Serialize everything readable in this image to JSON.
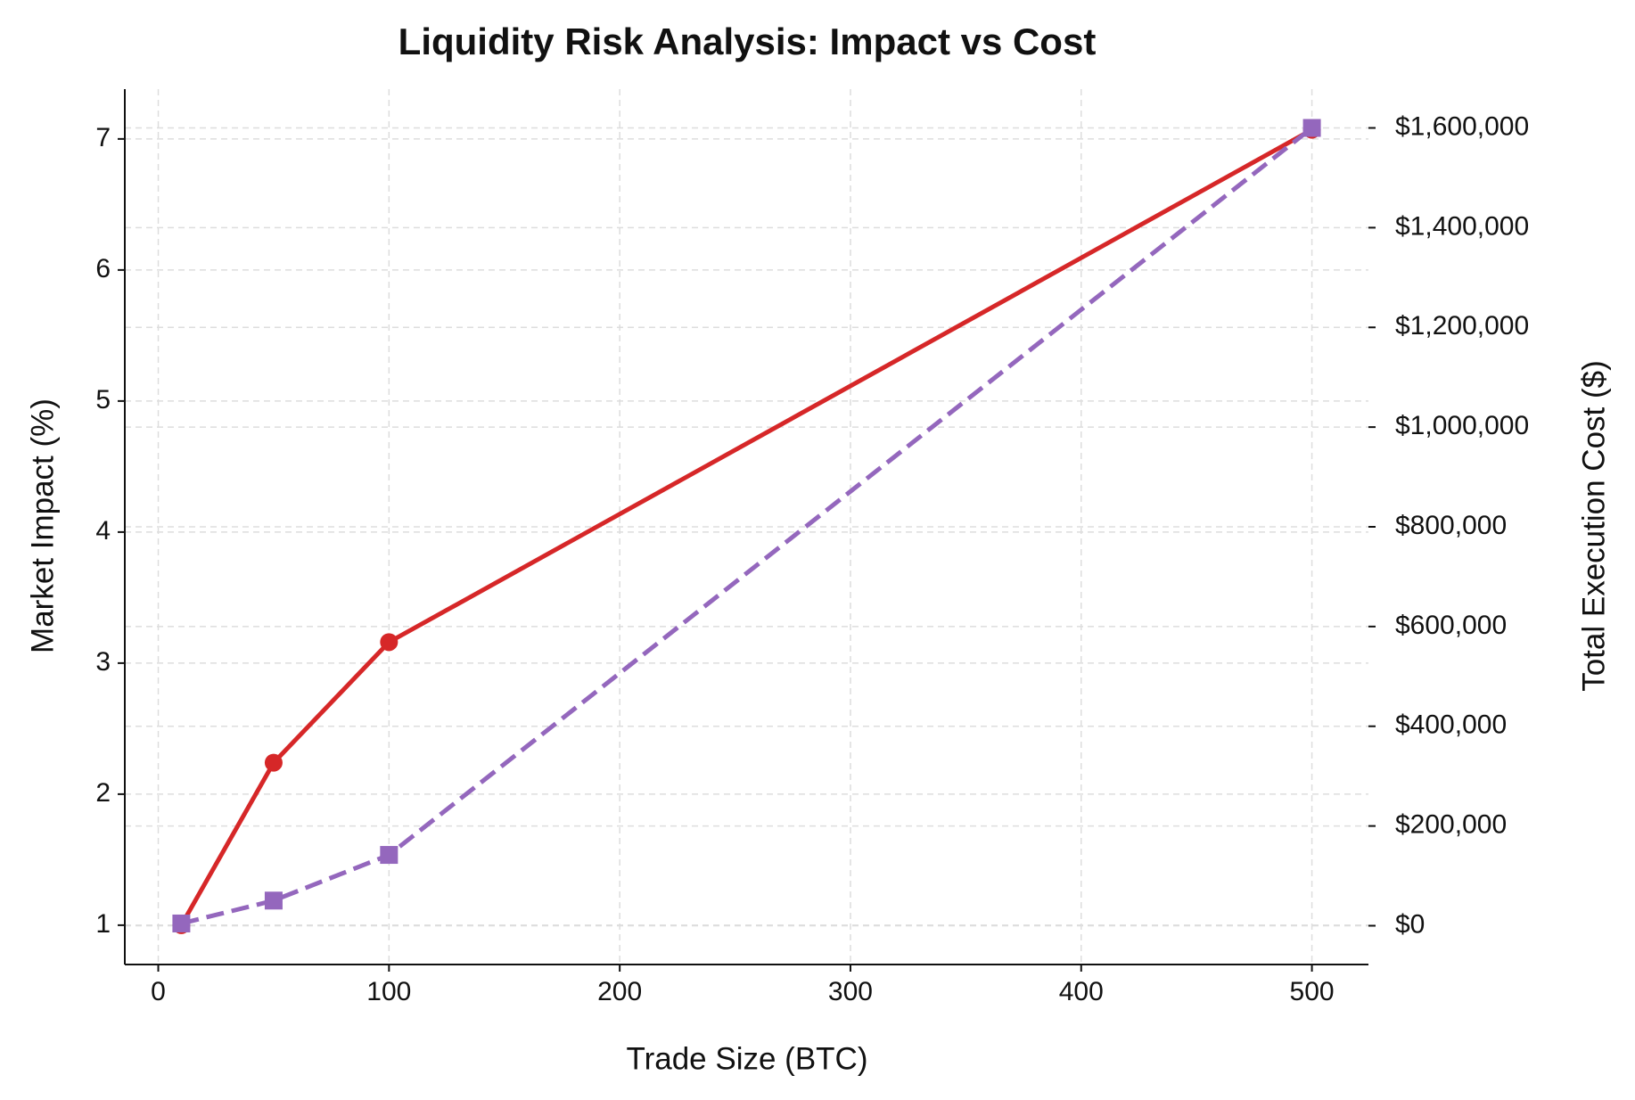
{
  "chart_data": {
    "type": "line",
    "title": "Liquidity Risk Analysis: Impact vs Cost",
    "x_label": "Trade Size (BTC)",
    "y_label": "Market Impact (%)",
    "y2_label": "Total Execution Cost ($)",
    "x": [
      10,
      50,
      100,
      500
    ],
    "series": [
      {
        "name": "Market Impact",
        "color": "#d62728",
        "values": [
          1.0,
          2.24,
          3.16,
          7.07
        ],
        "marker": "circle",
        "dash": "solid"
      },
      {
        "name": "Total Execution Cost",
        "color": "#9467bd",
        "values": [
          4500,
          50400,
          142000,
          1600000
        ],
        "axis": "y2",
        "marker": "square",
        "dash": "dashed"
      }
    ],
    "xlim": [
      -14.5,
      524.5
    ],
    "xticks": [
      0,
      100,
      200,
      300,
      400,
      500
    ],
    "ylim": [
      0.7,
      7.38
    ],
    "yticks": [
      1,
      2,
      3,
      4,
      5,
      6,
      7
    ],
    "y2lim": [
      -77800,
      1677800
    ],
    "y2ticks": [
      {
        "value": 0,
        "label": "$0"
      },
      {
        "value": 200000,
        "label": "$200,000"
      },
      {
        "value": 400000,
        "label": "$400,000"
      },
      {
        "value": 600000,
        "label": "$600,000"
      },
      {
        "value": 800000,
        "label": "$800,000"
      },
      {
        "value": 1000000,
        "label": "$1,000,000"
      },
      {
        "value": 1200000,
        "label": "$1,200,000"
      },
      {
        "value": 1400000,
        "label": "$1,400,000"
      },
      {
        "value": 1600000,
        "label": "$1,600,000"
      }
    ],
    "grid": true
  }
}
